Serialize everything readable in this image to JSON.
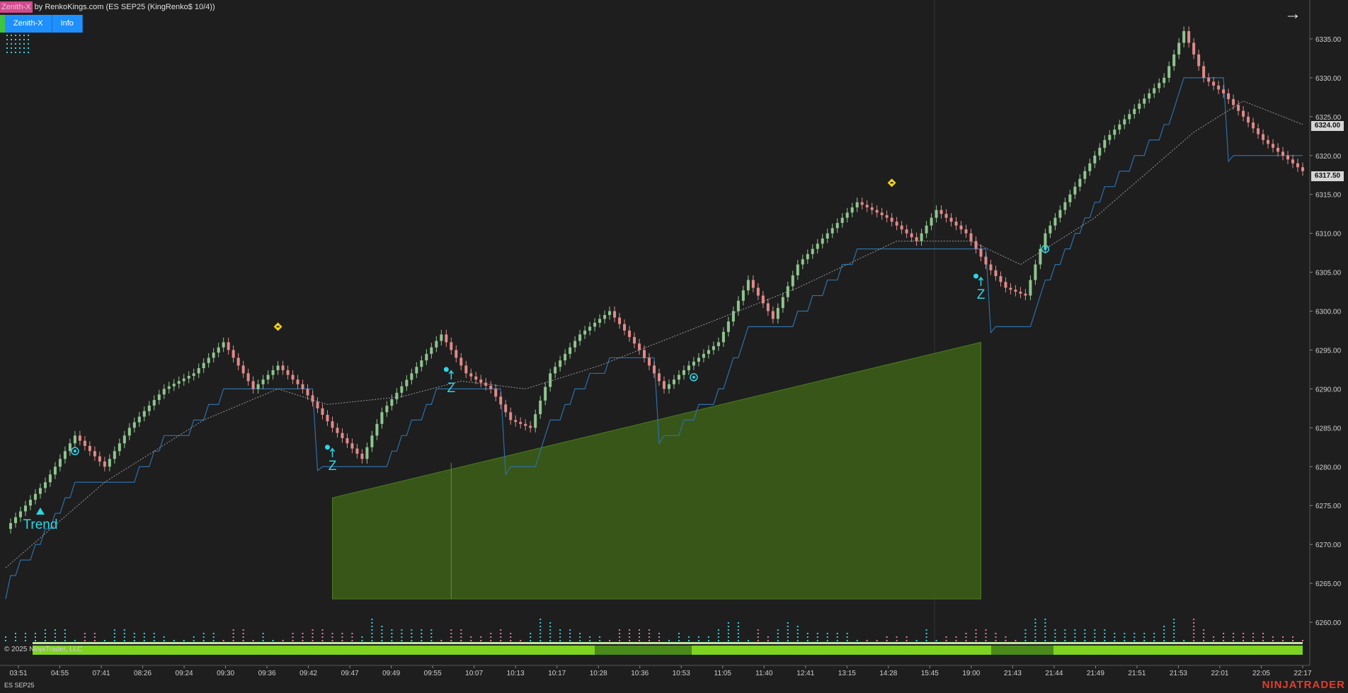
{
  "header": {
    "badge": "Zenith-X",
    "title": "by RenkoKings.com (ES SEP25 (KingRenko$ 10/4))"
  },
  "toolbar": {
    "zenith_button": "Zenith-X",
    "info_button": "Info",
    "arrow_icon": "arrow-right-icon"
  },
  "footer": {
    "copyright": "© 2025 NinjaTrader, LLC",
    "instrument": "ES SEP25",
    "logo": "NINJATRADER"
  },
  "price_tags": {
    "upper": "6324.00",
    "lower": "6317.50"
  },
  "signals": {
    "trend_label": "Trend",
    "z_label": "Z"
  },
  "colors": {
    "background": "#1e1e1e",
    "up_candle": "#8fc58f",
    "down_candle": "#e08a8a",
    "stop_line": "#2e6fa8",
    "ma_line": "#9a9a9a",
    "signal": "#2ed6e6",
    "diamond": "#f2d21b",
    "fill_zone": "#3a5a18",
    "bottom_bar": "#7ed321",
    "bottom_bar_dark": "#4a8a1a"
  },
  "chart_data": {
    "type": "candlestick",
    "instrument": "ES SEP25",
    "y_ticks": [
      6260,
      6265,
      6270,
      6275,
      6280,
      6285,
      6290,
      6295,
      6300,
      6305,
      6310,
      6315,
      6320,
      6325,
      6330,
      6335
    ],
    "y_tick_labels": [
      "6260.00",
      "6265.00",
      "6270.00",
      "6275.00",
      "6280.00",
      "6285.00",
      "6290.00",
      "6295.00",
      "6300.00",
      "6305.00",
      "6310.00",
      "6315.00",
      "6320.00",
      "6325.00",
      "6330.00",
      "6335.00"
    ],
    "ylim": [
      6257,
      6340
    ],
    "x_tick_labels": [
      "03:51",
      "04:55",
      "07:41",
      "08:26",
      "09:24",
      "09:30",
      "09:36",
      "09:42",
      "09:47",
      "09:49",
      "09:55",
      "10:07",
      "10:13",
      "10:17",
      "10:28",
      "10:36",
      "10:53",
      "11:05",
      "11:40",
      "12:41",
      "13:15",
      "14:28",
      "15:45",
      "19:00",
      "21:43",
      "21:44",
      "21:49",
      "21:51",
      "21:53",
      "22:01",
      "22:05",
      "22:17"
    ],
    "close_path": [
      [
        0,
        6272
      ],
      [
        8,
        6278
      ],
      [
        14,
        6284
      ],
      [
        20,
        6280
      ],
      [
        25,
        6285
      ],
      [
        32,
        6290
      ],
      [
        38,
        6292
      ],
      [
        44,
        6296
      ],
      [
        50,
        6290
      ],
      [
        55,
        6293
      ],
      [
        60,
        6290
      ],
      [
        66,
        6285
      ],
      [
        72,
        6281
      ],
      [
        76,
        6287
      ],
      [
        82,
        6292
      ],
      [
        88,
        6297
      ],
      [
        93,
        6292
      ],
      [
        98,
        6290
      ],
      [
        102,
        6286
      ],
      [
        106,
        6285
      ],
      [
        110,
        6292
      ],
      [
        116,
        6297
      ],
      [
        122,
        6300
      ],
      [
        128,
        6295
      ],
      [
        133,
        6290
      ],
      [
        138,
        6293
      ],
      [
        144,
        6296
      ],
      [
        150,
        6304
      ],
      [
        155,
        6299
      ],
      [
        160,
        6306
      ],
      [
        166,
        6310
      ],
      [
        172,
        6314
      ],
      [
        178,
        6312
      ],
      [
        184,
        6309
      ],
      [
        188,
        6313
      ],
      [
        194,
        6310
      ],
      [
        198,
        6306
      ],
      [
        202,
        6303
      ],
      [
        206,
        6302
      ],
      [
        210,
        6310
      ],
      [
        216,
        6316
      ],
      [
        222,
        6322
      ],
      [
        228,
        6326
      ],
      [
        234,
        6330
      ],
      [
        238,
        6336
      ],
      [
        242,
        6330
      ],
      [
        246,
        6328
      ],
      [
        250,
        6325
      ],
      [
        254,
        6322
      ],
      [
        258,
        6320
      ],
      [
        262,
        6318
      ]
    ],
    "moving_average_path": [
      [
        0,
        6267
      ],
      [
        20,
        6278
      ],
      [
        40,
        6286
      ],
      [
        55,
        6290
      ],
      [
        65,
        6288
      ],
      [
        80,
        6289
      ],
      [
        92,
        6291
      ],
      [
        105,
        6290
      ],
      [
        120,
        6293
      ],
      [
        140,
        6298
      ],
      [
        160,
        6303
      ],
      [
        180,
        6309
      ],
      [
        195,
        6309
      ],
      [
        205,
        6306
      ],
      [
        220,
        6312
      ],
      [
        240,
        6323
      ],
      [
        250,
        6327
      ],
      [
        262,
        6324
      ]
    ],
    "signals": [
      {
        "type": "trend",
        "label": "Trend",
        "index": 7
      },
      {
        "type": "z",
        "label": "Z",
        "index": 66
      },
      {
        "type": "z",
        "label": "Z",
        "index": 90
      },
      {
        "type": "z",
        "label": "Z",
        "index": 197
      },
      {
        "type": "diamond",
        "index": 55
      },
      {
        "type": "diamond",
        "index": 179
      },
      {
        "type": "target",
        "index": 14
      },
      {
        "type": "target",
        "index": 139
      },
      {
        "type": "target",
        "index": 210
      }
    ],
    "zone": {
      "from_index": 66,
      "to_index": 197,
      "bottom": 6263,
      "top_start": 6276,
      "top_end": 6296
    },
    "last_price": 6317.5,
    "marker_price": 6324.0
  }
}
